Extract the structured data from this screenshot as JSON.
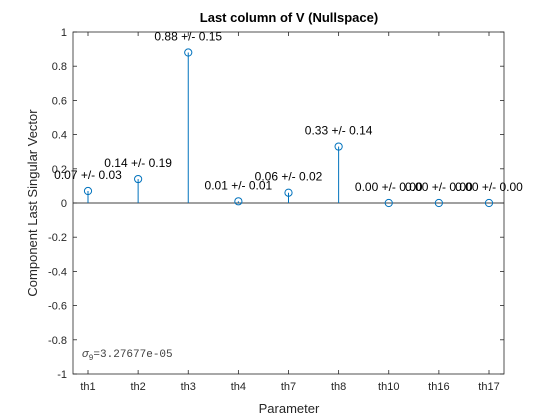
{
  "chart_data": {
    "type": "stem",
    "title": "Last column of V (Nullspace)",
    "xlabel": "Parameter",
    "ylabel": "Component Last Singular Vector",
    "categories": [
      "th1",
      "th2",
      "th3",
      "th4",
      "th7",
      "th8",
      "th10",
      "th16",
      "th17"
    ],
    "values": [
      0.07,
      0.14,
      0.88,
      0.01,
      0.06,
      0.33,
      0.0,
      0.0,
      0.0
    ],
    "labels": [
      "0.07 +/- 0.03",
      "0.14 +/- 0.19",
      "0.88 +/- 0.15",
      "0.01 +/- 0.01",
      "0.06 +/- 0.02",
      "0.33 +/- 0.14",
      "0.00 +/- 0.00",
      "0.00 +/- 0.00",
      "0.00 +/- 0.00"
    ],
    "ylim": [
      -1,
      1
    ],
    "yticks": [
      1,
      0.8,
      0.6,
      0.4,
      0.2,
      0,
      -0.2,
      -0.4,
      -0.6,
      -0.8,
      -1
    ],
    "ytick_labels": [
      "1",
      "0.8",
      "0.6",
      "0.4",
      "0.2",
      "0",
      "-0.2",
      "-0.4",
      "-0.6",
      "-0.8",
      "-1"
    ],
    "grid": false,
    "color": "#0072BD",
    "annotation": {
      "symbol": "σ",
      "subscript": "9",
      "value": "=3.27677e-05"
    }
  }
}
